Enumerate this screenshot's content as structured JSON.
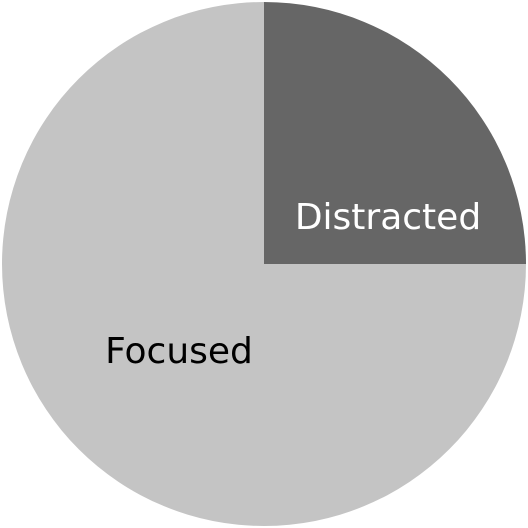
{
  "chart_data": {
    "type": "pie",
    "start_angle": "top",
    "direction": "clockwise",
    "legend": "none",
    "slices": [
      {
        "label": "Distracted",
        "value": 25,
        "color": "#666666",
        "label_color": "#ffffff"
      },
      {
        "label": "Focused",
        "value": 75,
        "color": "#c4c4c4",
        "label_color": "#000000"
      }
    ]
  }
}
